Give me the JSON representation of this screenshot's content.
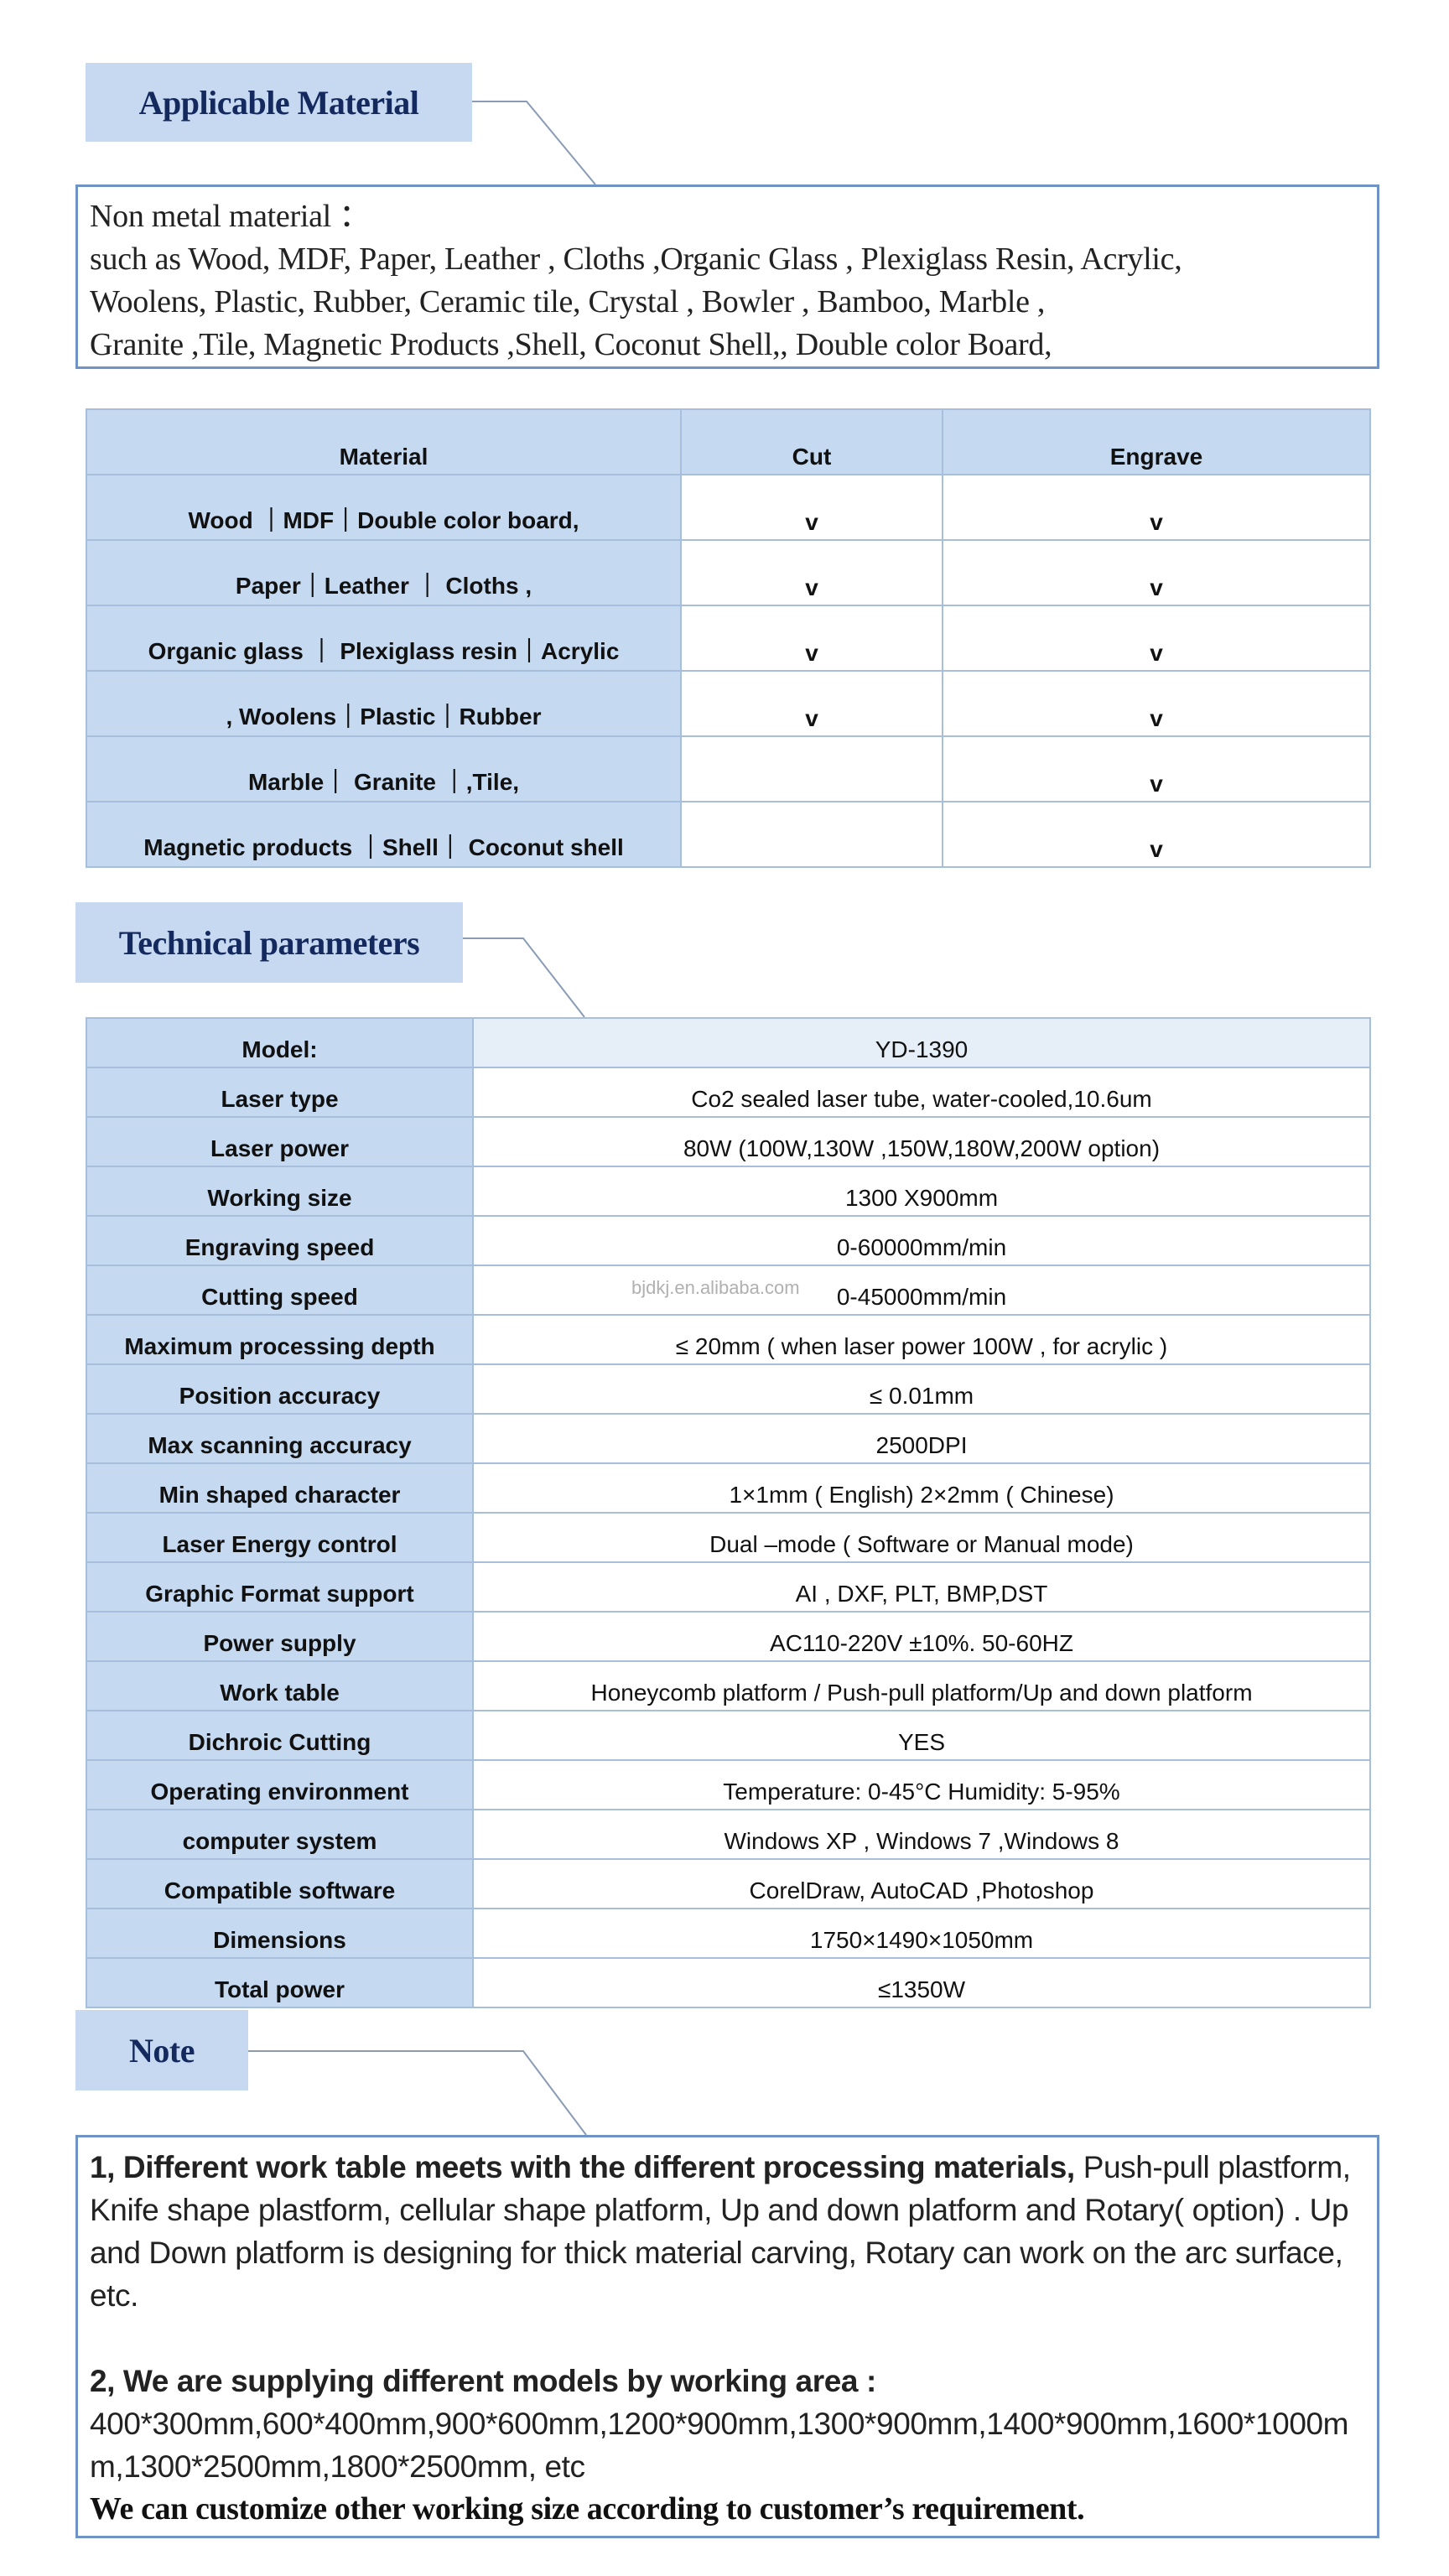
{
  "applicable_material": {
    "title": "Applicable Material",
    "lines": [
      "Non metal material ：",
      "such as Wood, MDF, Paper, Leather , Cloths ,Organic Glass , Plexiglass Resin, Acrylic,",
      "Woolens, Plastic, Rubber, Ceramic tile, Crystal , Bowler , Bamboo, Marble ,",
      "Granite ,Tile, Magnetic Products ,Shell, Coconut Shell,, Double color Board,"
    ]
  },
  "material_table": {
    "headers": [
      "Material",
      "Cut",
      "Engrave"
    ],
    "rows": [
      {
        "material": "Wood  ｜MDF｜Double color board,",
        "cut": "v",
        "engrave": "v"
      },
      {
        "material": "Paper｜Leather ｜ Cloths ,",
        "cut": "v",
        "engrave": "v"
      },
      {
        "material": "Organic glass ｜ Plexiglass resin｜Acrylic",
        "cut": "v",
        "engrave": "v"
      },
      {
        "material": ", Woolens｜Plastic｜Rubber",
        "cut": "v",
        "engrave": "v"
      },
      {
        "material": "Marble｜ Granite ｜,Tile,",
        "cut": "",
        "engrave": "v"
      },
      {
        "material": "Magnetic products ｜Shell｜ Coconut shell",
        "cut": "",
        "engrave": "v"
      }
    ]
  },
  "technical_parameters": {
    "title": "Technical parameters",
    "watermark": "bjdkj.en.alibaba.com",
    "rows": [
      {
        "key": "Model:",
        "value": "YD-1390"
      },
      {
        "key": "Laser type",
        "value": "Co2 sealed laser tube, water-cooled,10.6um"
      },
      {
        "key": "Laser power",
        "value": "80W (100W,130W ,150W,180W,200W option)"
      },
      {
        "key": "Working size",
        "value": "1300 X900mm"
      },
      {
        "key": "Engraving speed",
        "value": "0-60000mm/min"
      },
      {
        "key": "Cutting speed",
        "value": "0-45000mm/min"
      },
      {
        "key": "Maximum processing depth",
        "value": "≤ 20mm ( when laser power 100W , for acrylic )"
      },
      {
        "key": "Position  accuracy",
        "value": "≤ 0.01mm"
      },
      {
        "key": "Max scanning accuracy",
        "value": "2500DPI"
      },
      {
        "key": "Min shaped character",
        "value": "1×1mm ( English)   2×2mm ( Chinese)"
      },
      {
        "key": "Laser Energy control",
        "value": "Dual –mode ( Software or Manual mode)"
      },
      {
        "key": "Graphic Format support",
        "value": "AI , DXF, PLT, BMP,DST"
      },
      {
        "key": "Power supply",
        "value": "AC110-220V ±10%.    50-60HZ"
      },
      {
        "key": "Work table",
        "value": "Honeycomb platform / Push-pull platform/Up and down platform"
      },
      {
        "key": "Dichroic Cutting",
        "value": "YES"
      },
      {
        "key": "Operating environment",
        "value": "Temperature: 0-45°C    Humidity: 5-95%"
      },
      {
        "key": "computer system",
        "value": "Windows XP , Windows 7 ,Windows 8"
      },
      {
        "key": "Compatible software",
        "value": "CorelDraw,  AutoCAD ,Photoshop"
      },
      {
        "key": "Dimensions",
        "value": "1750×1490×1050mm"
      },
      {
        "key": "Total power",
        "value": "≤1350W"
      }
    ]
  },
  "note": {
    "title": "Note",
    "item1_bold": "1,  Different work table meets with the different processing materials,",
    "item1_text": " Push-pull plastform, Knife shape plastform, cellular shape platform, Up and down platform and Rotary( option) . Up and Down platform is designing for thick material carving, Rotary can work on the arc surface, etc.",
    "item2_bold": "2,  We are supplying different models by working area :",
    "item2_text": "400*300mm,600*400mm,900*600mm,1200*900mm,1300*900mm,1400*900mm,1600*1000mm,1300*2500mm,1800*2500mm, etc",
    "closing": "We can customize other working size according to customer’s requirement."
  },
  "colors": {
    "label_bg": "#c6d9f0",
    "label_text": "#14295e",
    "box_border": "#6f93c4",
    "cell_blue": "#c5d9f1"
  }
}
